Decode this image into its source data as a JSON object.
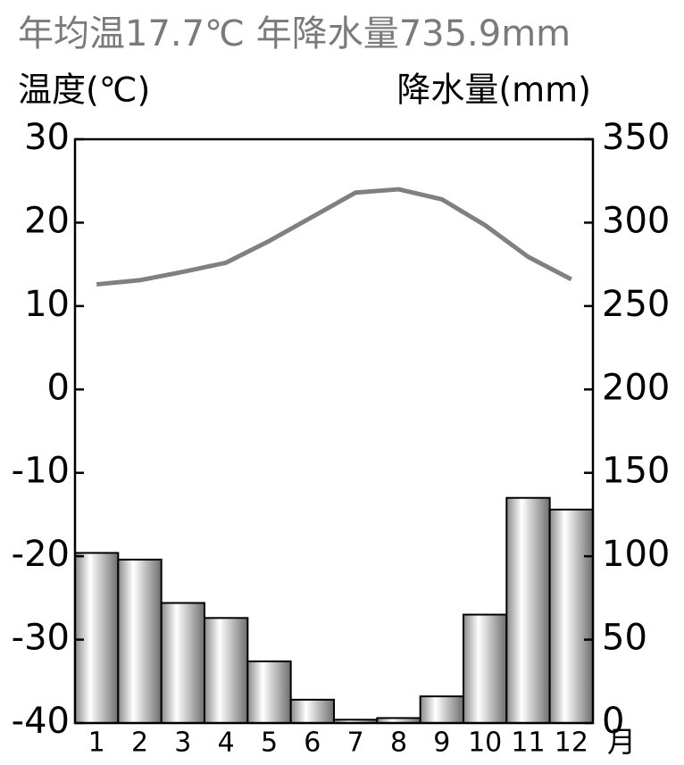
{
  "chart_data": {
    "type": "climograph",
    "title": "年均温17.7℃ 年降水量735.9mm",
    "ylabel": "温度(℃)",
    "y2label": "降水量(mm)",
    "xlabel": "月",
    "categories": [
      "1",
      "2",
      "3",
      "4",
      "5",
      "6",
      "7",
      "8",
      "9",
      "10",
      "11",
      "12"
    ],
    "series": [
      {
        "kind": "line",
        "axis": "y",
        "color": "#808080",
        "values": [
          12.6,
          13.1,
          14.1,
          15.2,
          17.8,
          20.7,
          23.6,
          24.0,
          22.8,
          19.7,
          15.9,
          13.2
        ]
      },
      {
        "kind": "bar",
        "axis": "y2",
        "color": "#c0c0c0",
        "values": [
          102,
          98,
          72,
          63,
          37,
          14,
          2,
          3,
          16,
          65,
          135,
          128
        ]
      }
    ],
    "ylim": [
      -40,
      30
    ],
    "yticks": [
      -40,
      -30,
      -20,
      -10,
      0,
      10,
      20,
      30
    ],
    "y2lim": [
      0,
      350
    ],
    "y2ticks": [
      0,
      50,
      100,
      150,
      200,
      250,
      300,
      350
    ]
  }
}
